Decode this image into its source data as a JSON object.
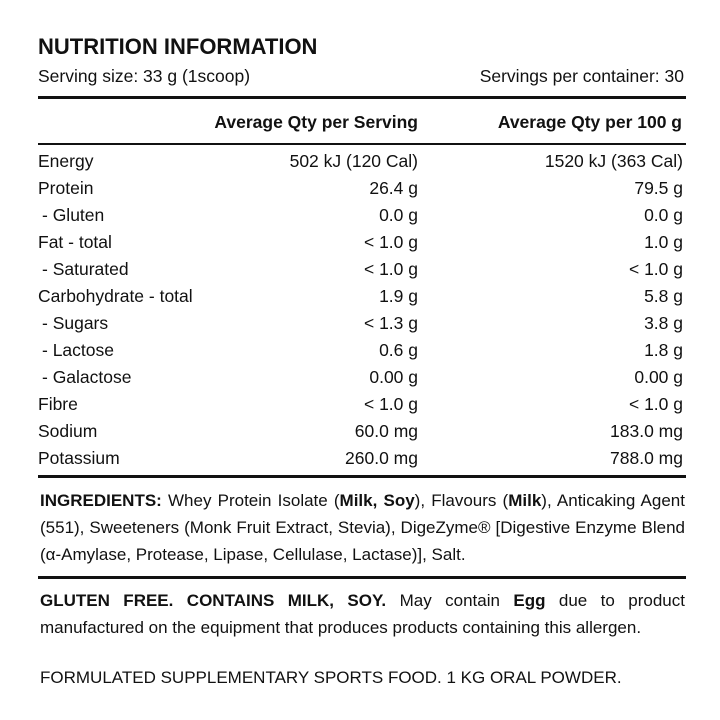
{
  "header": {
    "title": "NUTRITION INFORMATION",
    "serving_size": "Serving size: 33 g (1scoop)",
    "servings_per_container": "Servings per container: 30"
  },
  "table": {
    "columns": [
      "Average Qty per Serving",
      "Average Qty per 100 g"
    ],
    "rows": [
      {
        "label": "Energy",
        "indent": false,
        "values": [
          "502 kJ (120 Cal)",
          "1520 kJ (363 Cal)"
        ]
      },
      {
        "label": "Protein",
        "indent": false,
        "values": [
          "26.4 g",
          "79.5 g"
        ]
      },
      {
        "label": "- Gluten",
        "indent": true,
        "values": [
          "0.0 g",
          "0.0 g"
        ]
      },
      {
        "label": "Fat - total",
        "indent": false,
        "values": [
          "< 1.0 g",
          "1.0 g"
        ]
      },
      {
        "label": "- Saturated",
        "indent": true,
        "values": [
          "< 1.0 g",
          "< 1.0 g"
        ]
      },
      {
        "label": "Carbohydrate - total",
        "indent": false,
        "values": [
          "1.9 g",
          "5.8 g"
        ]
      },
      {
        "label": "- Sugars",
        "indent": true,
        "values": [
          "< 1.3 g",
          "3.8 g"
        ]
      },
      {
        "label": "- Lactose",
        "indent": true,
        "values": [
          "0.6 g",
          "1.8 g"
        ]
      },
      {
        "label": "- Galactose",
        "indent": true,
        "values": [
          "0.00 g",
          "0.00 g"
        ]
      },
      {
        "label": "Fibre",
        "indent": false,
        "values": [
          "< 1.0 g",
          "< 1.0 g"
        ]
      },
      {
        "label": "Sodium",
        "indent": false,
        "values": [
          "60.0 mg",
          "183.0 mg"
        ]
      },
      {
        "label": "Potassium",
        "indent": false,
        "values": [
          "260.0 mg",
          "788.0 mg"
        ]
      }
    ]
  },
  "ingredients": [
    {
      "text": "INGREDIENTS:",
      "bold": true
    },
    {
      "text": " Whey Protein Isolate (",
      "bold": false
    },
    {
      "text": "Milk, Soy",
      "bold": true
    },
    {
      "text": "), Flavours (",
      "bold": false
    },
    {
      "text": "Milk",
      "bold": true
    },
    {
      "text": "), Anticaking Agent (551), Sweeteners (Monk Fruit Extract, Stevia), DigeZyme® [Digestive Enzyme Blend (α-Amylase, Protease, Lipase, Cellulase, Lactase)], Salt.",
      "bold": false
    }
  ],
  "allergens": [
    {
      "text": "GLUTEN FREE. CONTAINS MILK, SOY.",
      "bold": true
    },
    {
      "text": " May contain ",
      "bold": false
    },
    {
      "text": "Egg",
      "bold": true
    },
    {
      "text": " due to product manufactured on the equipment that produces products containing this allergen.",
      "bold": false
    }
  ],
  "footer": "FORMULATED SUPPLEMENTARY SPORTS FOOD. 1 KG ORAL POWDER."
}
